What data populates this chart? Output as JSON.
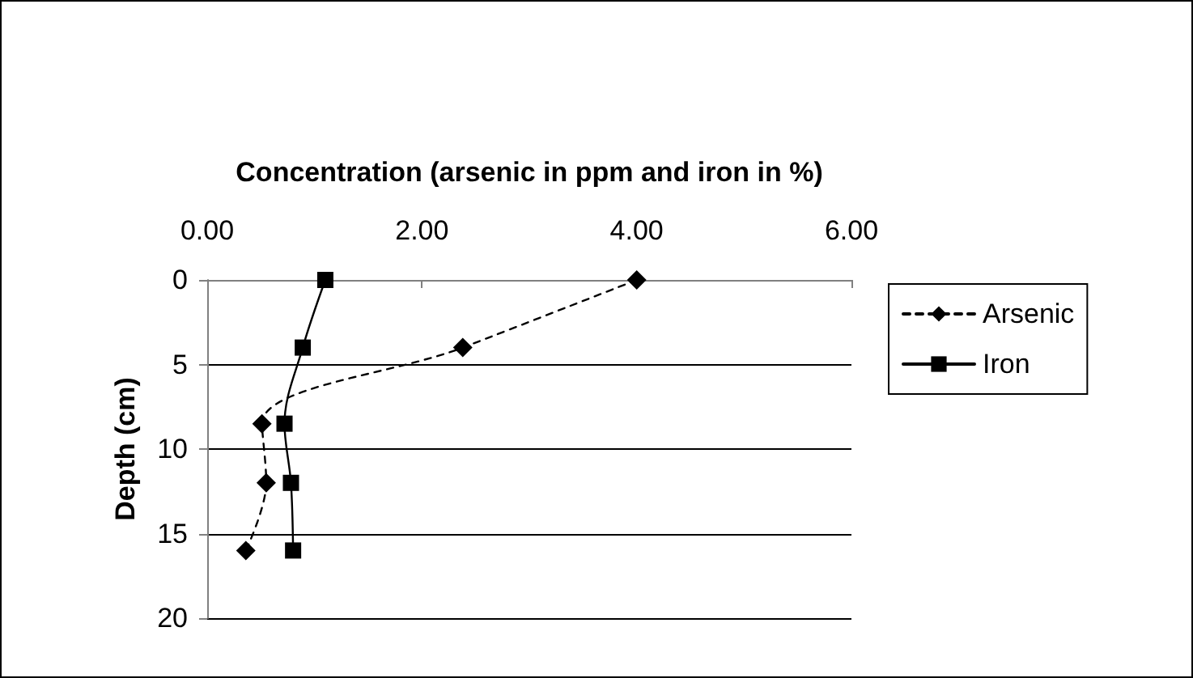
{
  "chart_data": {
    "type": "line",
    "xlabel": "Concentration (arsenic in ppm and iron in %)",
    "ylabel": "Depth (cm)",
    "series": [
      {
        "name": "Arsenic",
        "color": "#000000",
        "marker": "diamond",
        "line_style": "dashed",
        "x": [
          4.0,
          2.38,
          0.51,
          0.55,
          0.36
        ],
        "values": [
          0,
          4,
          8.5,
          12,
          16
        ]
      },
      {
        "name": "Iron",
        "color": "#000000",
        "marker": "square",
        "line_style": "solid",
        "x": [
          1.1,
          0.89,
          0.72,
          0.78,
          0.8
        ],
        "values": [
          0,
          4,
          8.5,
          12,
          16
        ]
      }
    ],
    "xlim": [
      0,
      6
    ],
    "xticks": [
      {
        "value": 0,
        "label": "0.00"
      },
      {
        "value": 2,
        "label": "2.00"
      },
      {
        "value": 4,
        "label": "4.00"
      },
      {
        "value": 6,
        "label": "6.00"
      }
    ],
    "ylim": [
      20,
      0
    ],
    "yticks": [
      0,
      5,
      10,
      15,
      20
    ],
    "grid": "y",
    "legend": "right"
  }
}
